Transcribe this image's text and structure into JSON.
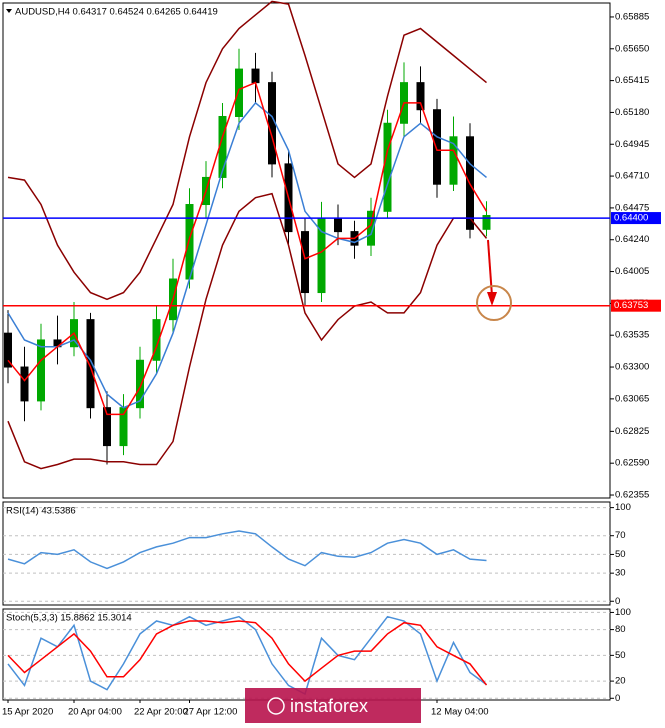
{
  "chart_data": [
    {
      "type": "candlestick",
      "title": "AUDUSD,H4  0.64317 0.64524 0.64265 0.64419",
      "categories": [
        "15 Apr 2020",
        null,
        null,
        null,
        "20 Apr 04:00",
        null,
        null,
        null,
        "22 Apr 20:00",
        null,
        null,
        "27 Apr 12:00",
        null,
        null,
        null,
        null,
        null,
        null,
        null,
        null,
        null,
        null,
        null,
        null,
        null,
        null,
        "12 May 04:00",
        null,
        null,
        null
      ],
      "open": [
        0.6355,
        0.633,
        0.6305,
        0.635,
        0.6345,
        0.6365,
        0.63,
        0.6272,
        0.63,
        0.6335,
        0.6365,
        0.6395,
        0.645,
        0.647,
        0.6515,
        0.655,
        0.654,
        0.648,
        0.643,
        0.6385,
        0.644,
        0.643,
        0.642,
        0.6445,
        0.651,
        0.654,
        0.652,
        0.6465,
        0.65,
        0.64317
      ],
      "high": [
        0.6372,
        0.6345,
        0.6362,
        0.6368,
        0.6378,
        0.637,
        0.6312,
        0.631,
        0.6345,
        0.6375,
        0.641,
        0.6462,
        0.6482,
        0.6525,
        0.6565,
        0.6562,
        0.6548,
        0.649,
        0.644,
        0.6452,
        0.645,
        0.6438,
        0.6455,
        0.652,
        0.6555,
        0.6552,
        0.6528,
        0.6515,
        0.651,
        0.64524
      ],
      "low": [
        0.6318,
        0.629,
        0.6298,
        0.6332,
        0.6338,
        0.6292,
        0.6258,
        0.6265,
        0.6292,
        0.6325,
        0.6355,
        0.6388,
        0.644,
        0.6462,
        0.6505,
        0.6525,
        0.647,
        0.642,
        0.6375,
        0.6378,
        0.642,
        0.641,
        0.6412,
        0.644,
        0.65,
        0.651,
        0.6455,
        0.646,
        0.6425,
        0.64265
      ],
      "close": [
        0.633,
        0.6305,
        0.635,
        0.6345,
        0.6365,
        0.63,
        0.6272,
        0.63,
        0.6335,
        0.6365,
        0.6395,
        0.645,
        0.647,
        0.6515,
        0.655,
        0.654,
        0.648,
        0.643,
        0.6385,
        0.644,
        0.643,
        0.642,
        0.6445,
        0.651,
        0.654,
        0.652,
        0.6465,
        0.65,
        0.64317,
        0.64419
      ],
      "up_color": "#00a800",
      "down_color": "#000000",
      "series": [
        {
          "color": "#8b0000",
          "values": [
            0.647,
            0.6468,
            0.645,
            0.642,
            0.64,
            0.6385,
            0.638,
            0.6385,
            0.64,
            0.6425,
            0.645,
            0.65,
            0.654,
            0.6565,
            0.658,
            0.659,
            0.66,
            0.6598,
            0.656,
            0.652,
            0.648,
            0.647,
            0.648,
            0.653,
            0.6575,
            0.658,
            0.657,
            0.656,
            0.655,
            0.654
          ]
        },
        {
          "color": "#8b0000",
          "values": [
            0.629,
            0.626,
            0.6255,
            0.6258,
            0.6262,
            0.6262,
            0.626,
            0.626,
            0.6258,
            0.6258,
            0.6275,
            0.633,
            0.638,
            0.642,
            0.6445,
            0.6455,
            0.6458,
            0.642,
            0.637,
            0.635,
            0.6365,
            0.6375,
            0.6378,
            0.637,
            0.637,
            0.6385,
            0.642,
            0.644,
            0.644,
            0.6425
          ]
        },
        {
          "color": "#3a7fd5",
          "values": [
            0.637,
            0.635,
            0.6345,
            0.6345,
            0.635,
            0.6335,
            0.631,
            0.63,
            0.6305,
            0.6325,
            0.6355,
            0.6395,
            0.6435,
            0.6475,
            0.651,
            0.6525,
            0.6515,
            0.649,
            0.6445,
            0.643,
            0.6425,
            0.6422,
            0.6428,
            0.6465,
            0.65,
            0.651,
            0.65,
            0.6495,
            0.648,
            0.647
          ]
        },
        {
          "color": "#ff0000",
          "values": [
            0.6335,
            0.632,
            0.6335,
            0.6345,
            0.6355,
            0.633,
            0.6295,
            0.6295,
            0.6315,
            0.6345,
            0.638,
            0.6425,
            0.646,
            0.65,
            0.6535,
            0.654,
            0.65,
            0.6455,
            0.641,
            0.6415,
            0.6425,
            0.6425,
            0.6435,
            0.649,
            0.6525,
            0.6525,
            0.649,
            0.649,
            0.6465,
            0.6445
          ]
        }
      ],
      "lines": [
        {
          "value": 0.644,
          "label": "0.64400",
          "color": "#0000ff"
        },
        {
          "value": 0.63753,
          "label": "0.63753",
          "color": "#ff0000"
        }
      ],
      "ylim": [
        0.62333,
        0.65988
      ],
      "yticks": [
        {
          "value": 0.65885,
          "label": "0.65885"
        },
        {
          "value": 0.6565,
          "label": "0.65650"
        },
        {
          "value": 0.65415,
          "label": "0.65415"
        },
        {
          "value": 0.6518,
          "label": "0.65180"
        },
        {
          "value": 0.64945,
          "label": "0.64945"
        },
        {
          "value": 0.6471,
          "label": "0.64710"
        },
        {
          "value": 0.64475,
          "label": "0.64475"
        },
        {
          "value": 0.6424,
          "label": "0.64240"
        },
        {
          "value": 0.64005,
          "label": "0.64005"
        },
        {
          "value": 0.6377,
          "label": "0.63770"
        },
        {
          "value": 0.63535,
          "label": "0.63535"
        },
        {
          "value": 0.633,
          "label": "0.63300"
        },
        {
          "value": 0.63065,
          "label": "0.63065"
        },
        {
          "value": 0.62825,
          "label": "0.62825"
        },
        {
          "value": 0.6259,
          "label": "0.62590"
        },
        {
          "value": 0.62355,
          "label": "0.62355"
        }
      ],
      "grid": false,
      "watermark": "instaforex"
    },
    {
      "type": "line",
      "title": "RSI(14) 43.5386",
      "series": [
        {
          "color": "#4a90d9",
          "values": [
            45,
            40,
            52,
            50,
            55,
            42,
            35,
            42,
            52,
            58,
            62,
            68,
            68,
            72,
            75,
            72,
            58,
            45,
            38,
            52,
            48,
            47,
            52,
            62,
            66,
            62,
            50,
            55,
            45,
            43.5
          ]
        }
      ],
      "ylim": [
        -4,
        106
      ],
      "yticks": [
        100,
        70,
        50,
        30,
        0
      ],
      "grid": true
    },
    {
      "type": "line",
      "title": "Stoch(5,3,3) 15.8862 15.3014",
      "series": [
        {
          "color": "#4a90d9",
          "values": [
            40,
            15,
            70,
            60,
            85,
            20,
            10,
            40,
            75,
            90,
            85,
            95,
            85,
            90,
            95,
            80,
            40,
            15,
            5,
            70,
            50,
            45,
            70,
            95,
            90,
            75,
            20,
            65,
            30,
            15.9
          ]
        },
        {
          "color": "#ff0000",
          "values": [
            50,
            30,
            45,
            60,
            75,
            55,
            25,
            25,
            45,
            75,
            85,
            90,
            90,
            88,
            90,
            88,
            70,
            40,
            20,
            35,
            50,
            55,
            55,
            75,
            88,
            85,
            60,
            50,
            40,
            15.3
          ]
        }
      ],
      "ylim": [
        -2,
        104
      ],
      "yticks": [
        100,
        80,
        50,
        20,
        0
      ],
      "grid": true
    }
  ]
}
